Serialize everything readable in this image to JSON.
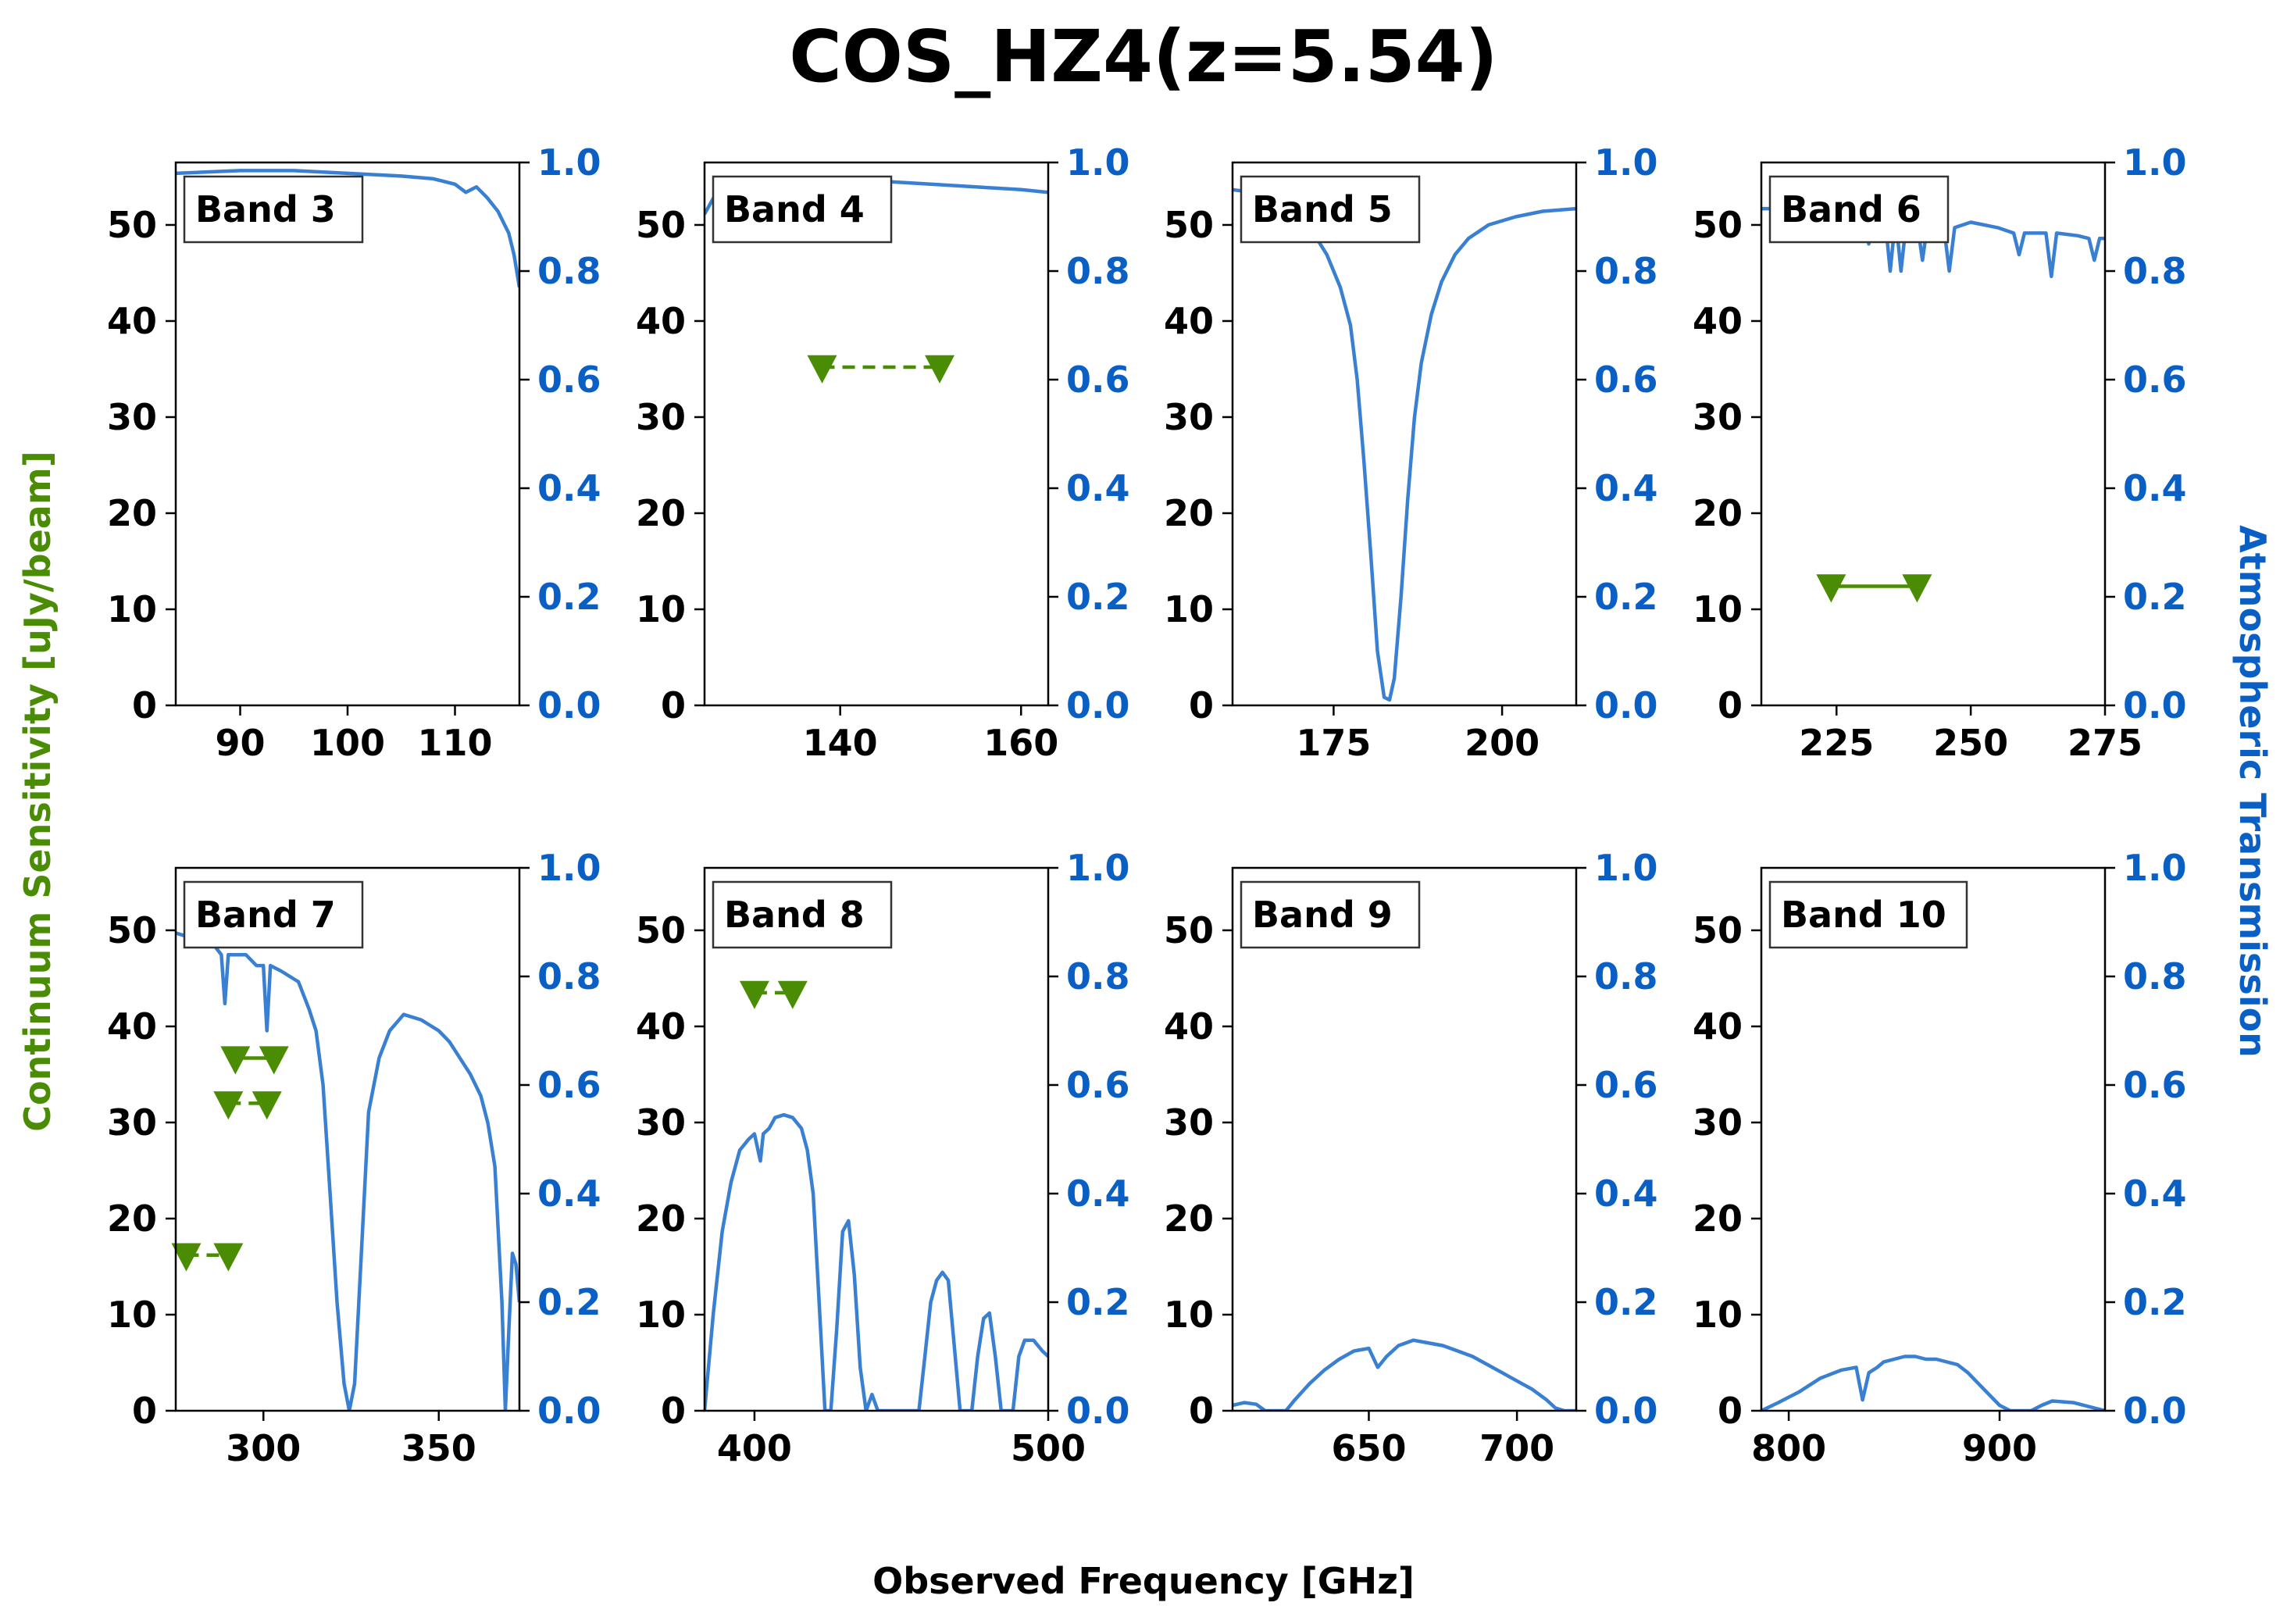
{
  "title": "COS_HZ4(z=5.54)",
  "xlabel": "Observed Frequency [GHz]",
  "ylabel_left": "Continuum Sensitivity [uJy/beam]",
  "ylabel_right": "Atmospheric Transmission",
  "colors": {
    "sensitivity": "#4a8c04",
    "transmission": "#3a80d2",
    "right_axis_text": "#0a5fc4",
    "axis": "#000000"
  },
  "chart_data": [
    {
      "type": "line",
      "label": "Band 3",
      "xlim": [
        84,
        116
      ],
      "ylim": [
        0,
        56.5
      ],
      "y2lim": [
        0,
        1
      ],
      "xticks": [
        90,
        100,
        110
      ],
      "yticks": [
        0,
        10,
        20,
        30,
        40,
        50
      ],
      "y2ticks": [
        0.0,
        0.2,
        0.4,
        0.6,
        0.8,
        1.0
      ],
      "sensitivity": [],
      "transmission": [
        [
          84,
          0.98
        ],
        [
          90,
          0.985
        ],
        [
          95,
          0.985
        ],
        [
          100,
          0.98
        ],
        [
          105,
          0.975
        ],
        [
          108,
          0.97
        ],
        [
          110,
          0.96
        ],
        [
          111,
          0.945
        ],
        [
          112,
          0.955
        ],
        [
          113,
          0.935
        ],
        [
          114,
          0.91
        ],
        [
          115,
          0.87
        ],
        [
          115.5,
          0.83
        ],
        [
          116,
          0.77
        ]
      ]
    },
    {
      "type": "line",
      "label": "Band 4",
      "xlim": [
        125,
        163
      ],
      "ylim": [
        0,
        56.5
      ],
      "y2lim": [
        0,
        1
      ],
      "xticks": [
        140,
        160
      ],
      "yticks": [
        0,
        10,
        20,
        30,
        40,
        50
      ],
      "y2ticks": [
        0.0,
        0.2,
        0.4,
        0.6,
        0.8,
        1.0
      ],
      "sensitivity": [
        {
          "x": [
            138,
            151
          ],
          "y": 35.2,
          "style": "dashed"
        }
      ],
      "transmission": [
        [
          125,
          0.905
        ],
        [
          126,
          0.935
        ],
        [
          128,
          0.955
        ],
        [
          130,
          0.96
        ],
        [
          135,
          0.965
        ],
        [
          140,
          0.965
        ],
        [
          145,
          0.965
        ],
        [
          150,
          0.96
        ],
        [
          155,
          0.955
        ],
        [
          160,
          0.95
        ],
        [
          163,
          0.945
        ]
      ]
    },
    {
      "type": "line",
      "label": "Band 5",
      "xlim": [
        160,
        211
      ],
      "ylim": [
        0,
        56.5
      ],
      "y2lim": [
        0,
        1
      ],
      "xticks": [
        175,
        200
      ],
      "yticks": [
        0,
        10,
        20,
        30,
        40,
        50
      ],
      "y2ticks": [
        0.0,
        0.2,
        0.4,
        0.6,
        0.8,
        1.0
      ],
      "sensitivity": [],
      "transmission": [
        [
          160,
          0.95
        ],
        [
          163,
          0.945
        ],
        [
          166,
          0.935
        ],
        [
          168,
          0.92
        ],
        [
          170,
          0.9
        ],
        [
          172,
          0.87
        ],
        [
          174,
          0.83
        ],
        [
          176,
          0.77
        ],
        [
          177.5,
          0.7
        ],
        [
          178.5,
          0.6
        ],
        [
          179.5,
          0.45
        ],
        [
          180.5,
          0.28
        ],
        [
          181.5,
          0.1
        ],
        [
          182.5,
          0.015
        ],
        [
          183.3,
          0.01
        ],
        [
          184,
          0.05
        ],
        [
          185,
          0.2
        ],
        [
          186,
          0.38
        ],
        [
          187,
          0.53
        ],
        [
          188,
          0.63
        ],
        [
          189.5,
          0.72
        ],
        [
          191,
          0.78
        ],
        [
          193,
          0.83
        ],
        [
          195,
          0.86
        ],
        [
          198,
          0.885
        ],
        [
          202,
          0.9
        ],
        [
          206,
          0.91
        ],
        [
          211,
          0.915
        ]
      ]
    },
    {
      "type": "line",
      "label": "Band 6",
      "xlim": [
        211,
        275
      ],
      "ylim": [
        0,
        56.5
      ],
      "y2lim": [
        0,
        1
      ],
      "xticks": [
        225,
        250,
        275
      ],
      "yticks": [
        0,
        10,
        20,
        30,
        40,
        50
      ],
      "y2ticks": [
        0.0,
        0.2,
        0.4,
        0.6,
        0.8,
        1.0
      ],
      "sensitivity": [
        {
          "x": [
            224,
            240
          ],
          "y": 12.4,
          "style": "solid"
        }
      ],
      "transmission": [
        [
          211,
          0.915
        ],
        [
          220,
          0.915
        ],
        [
          228,
          0.905
        ],
        [
          230,
          0.9
        ],
        [
          231,
          0.85
        ],
        [
          232,
          0.9
        ],
        [
          234,
          0.9
        ],
        [
          235,
          0.8
        ],
        [
          236,
          0.9
        ],
        [
          237,
          0.8
        ],
        [
          238,
          0.89
        ],
        [
          240,
          0.89
        ],
        [
          241,
          0.82
        ],
        [
          242,
          0.89
        ],
        [
          245,
          0.88
        ],
        [
          246,
          0.8
        ],
        [
          247,
          0.88
        ],
        [
          250,
          0.89
        ],
        [
          255,
          0.88
        ],
        [
          258,
          0.87
        ],
        [
          259,
          0.83
        ],
        [
          260,
          0.87
        ],
        [
          264,
          0.87
        ],
        [
          265,
          0.79
        ],
        [
          266,
          0.87
        ],
        [
          270,
          0.865
        ],
        [
          272,
          0.86
        ],
        [
          273,
          0.82
        ],
        [
          274,
          0.86
        ],
        [
          275,
          0.86
        ]
      ]
    },
    {
      "type": "line",
      "label": "Band 7",
      "xlim": [
        275,
        373
      ],
      "ylim": [
        0,
        56.5
      ],
      "y2lim": [
        0,
        1
      ],
      "xticks": [
        300,
        350
      ],
      "yticks": [
        0,
        10,
        20,
        30,
        40,
        50
      ],
      "y2ticks": [
        0.0,
        0.2,
        0.4,
        0.6,
        0.8,
        1.0
      ],
      "sensitivity": [
        {
          "x": [
            278,
            290
          ],
          "y": 16.2,
          "style": "dashed"
        },
        {
          "x": [
            290,
            301
          ],
          "y": 32.0,
          "style": "dashed"
        },
        {
          "x": [
            292,
            303
          ],
          "y": 36.7,
          "style": "solid"
        }
      ],
      "transmission": [
        [
          275,
          0.88
        ],
        [
          280,
          0.87
        ],
        [
          285,
          0.865
        ],
        [
          288,
          0.84
        ],
        [
          289,
          0.75
        ],
        [
          290,
          0.84
        ],
        [
          295,
          0.84
        ],
        [
          298,
          0.82
        ],
        [
          300,
          0.82
        ],
        [
          301,
          0.7
        ],
        [
          302,
          0.82
        ],
        [
          305,
          0.81
        ],
        [
          310,
          0.79
        ],
        [
          313,
          0.74
        ],
        [
          315,
          0.7
        ],
        [
          317,
          0.6
        ],
        [
          319,
          0.4
        ],
        [
          321,
          0.2
        ],
        [
          323,
          0.05
        ],
        [
          324.5,
          0.0
        ],
        [
          326,
          0.05
        ],
        [
          328,
          0.3
        ],
        [
          330,
          0.55
        ],
        [
          333,
          0.65
        ],
        [
          336,
          0.7
        ],
        [
          340,
          0.73
        ],
        [
          345,
          0.72
        ],
        [
          350,
          0.7
        ],
        [
          353,
          0.68
        ],
        [
          356,
          0.65
        ],
        [
          359,
          0.62
        ],
        [
          362,
          0.58
        ],
        [
          364,
          0.53
        ],
        [
          366,
          0.45
        ],
        [
          368,
          0.2
        ],
        [
          369,
          0.0
        ],
        [
          370,
          0.15
        ],
        [
          371,
          0.29
        ],
        [
          372,
          0.27
        ],
        [
          373,
          0.2
        ]
      ]
    },
    {
      "type": "line",
      "label": "Band 8",
      "xlim": [
        383,
        500
      ],
      "ylim": [
        0,
        56.5
      ],
      "y2lim": [
        0,
        1
      ],
      "xticks": [
        400,
        500
      ],
      "yticks": [
        0,
        10,
        20,
        30,
        40,
        50
      ],
      "y2ticks": [
        0.0,
        0.2,
        0.4,
        0.6,
        0.8,
        1.0
      ],
      "sensitivity": [
        {
          "x": [
            400,
            413
          ],
          "y": 43.5,
          "style": "dashed"
        }
      ],
      "transmission": [
        [
          383,
          0.0
        ],
        [
          386,
          0.18
        ],
        [
          389,
          0.33
        ],
        [
          392,
          0.42
        ],
        [
          395,
          0.48
        ],
        [
          398,
          0.5
        ],
        [
          400,
          0.51
        ],
        [
          402,
          0.46
        ],
        [
          403,
          0.51
        ],
        [
          405,
          0.52
        ],
        [
          407,
          0.54
        ],
        [
          410,
          0.545
        ],
        [
          413,
          0.54
        ],
        [
          416,
          0.52
        ],
        [
          418,
          0.48
        ],
        [
          420,
          0.4
        ],
        [
          422,
          0.2
        ],
        [
          424,
          0.0
        ],
        [
          426,
          0.0
        ],
        [
          428,
          0.15
        ],
        [
          430,
          0.33
        ],
        [
          432,
          0.35
        ],
        [
          434,
          0.25
        ],
        [
          436,
          0.08
        ],
        [
          438,
          0.0
        ],
        [
          440,
          0.03
        ],
        [
          442,
          0.0
        ],
        [
          456,
          0.0
        ],
        [
          458,
          0.1
        ],
        [
          460,
          0.2
        ],
        [
          462,
          0.24
        ],
        [
          464,
          0.255
        ],
        [
          466,
          0.24
        ],
        [
          468,
          0.12
        ],
        [
          470,
          0.0
        ],
        [
          474,
          0.0
        ],
        [
          476,
          0.1
        ],
        [
          478,
          0.17
        ],
        [
          480,
          0.18
        ],
        [
          482,
          0.1
        ],
        [
          484,
          0.0
        ],
        [
          488,
          0.0
        ],
        [
          490,
          0.1
        ],
        [
          492,
          0.13
        ],
        [
          495,
          0.13
        ],
        [
          498,
          0.11
        ],
        [
          500,
          0.1
        ]
      ]
    },
    {
      "type": "line",
      "label": "Band 9",
      "xlim": [
        604,
        720
      ],
      "ylim": [
        0,
        56.5
      ],
      "y2lim": [
        0,
        1
      ],
      "xticks": [
        650,
        700
      ],
      "yticks": [
        0,
        10,
        20,
        30,
        40,
        50
      ],
      "y2ticks": [
        0.0,
        0.2,
        0.4,
        0.6,
        0.8,
        1.0
      ],
      "sensitivity": [],
      "transmission": [
        [
          604,
          0.01
        ],
        [
          608,
          0.015
        ],
        [
          612,
          0.012
        ],
        [
          615,
          0.0
        ],
        [
          622,
          0.0
        ],
        [
          625,
          0.02
        ],
        [
          630,
          0.05
        ],
        [
          635,
          0.075
        ],
        [
          640,
          0.095
        ],
        [
          645,
          0.11
        ],
        [
          650,
          0.115
        ],
        [
          653,
          0.08
        ],
        [
          656,
          0.1
        ],
        [
          660,
          0.12
        ],
        [
          665,
          0.13
        ],
        [
          670,
          0.125
        ],
        [
          675,
          0.12
        ],
        [
          680,
          0.11
        ],
        [
          685,
          0.1
        ],
        [
          690,
          0.085
        ],
        [
          695,
          0.07
        ],
        [
          700,
          0.055
        ],
        [
          705,
          0.04
        ],
        [
          710,
          0.02
        ],
        [
          713,
          0.005
        ],
        [
          716,
          0.0
        ],
        [
          720,
          0.0
        ]
      ]
    },
    {
      "type": "line",
      "label": "Band 10",
      "xlim": [
        787,
        950
      ],
      "ylim": [
        0,
        56.5
      ],
      "y2lim": [
        0,
        1
      ],
      "xticks": [
        800,
        900
      ],
      "yticks": [
        0,
        10,
        20,
        30,
        40,
        50
      ],
      "y2ticks": [
        0.0,
        0.2,
        0.4,
        0.6,
        0.8,
        1.0
      ],
      "sensitivity": [],
      "transmission": [
        [
          787,
          0.0
        ],
        [
          795,
          0.015
        ],
        [
          805,
          0.035
        ],
        [
          815,
          0.06
        ],
        [
          825,
          0.075
        ],
        [
          832,
          0.08
        ],
        [
          835,
          0.02
        ],
        [
          838,
          0.07
        ],
        [
          842,
          0.08
        ],
        [
          845,
          0.09
        ],
        [
          850,
          0.095
        ],
        [
          855,
          0.1
        ],
        [
          860,
          0.1
        ],
        [
          865,
          0.095
        ],
        [
          870,
          0.095
        ],
        [
          875,
          0.09
        ],
        [
          880,
          0.085
        ],
        [
          885,
          0.07
        ],
        [
          890,
          0.05
        ],
        [
          895,
          0.03
        ],
        [
          900,
          0.01
        ],
        [
          905,
          0.0
        ],
        [
          915,
          0.0
        ],
        [
          920,
          0.01
        ],
        [
          925,
          0.018
        ],
        [
          935,
          0.015
        ],
        [
          945,
          0.005
        ],
        [
          950,
          0.0
        ]
      ]
    }
  ]
}
